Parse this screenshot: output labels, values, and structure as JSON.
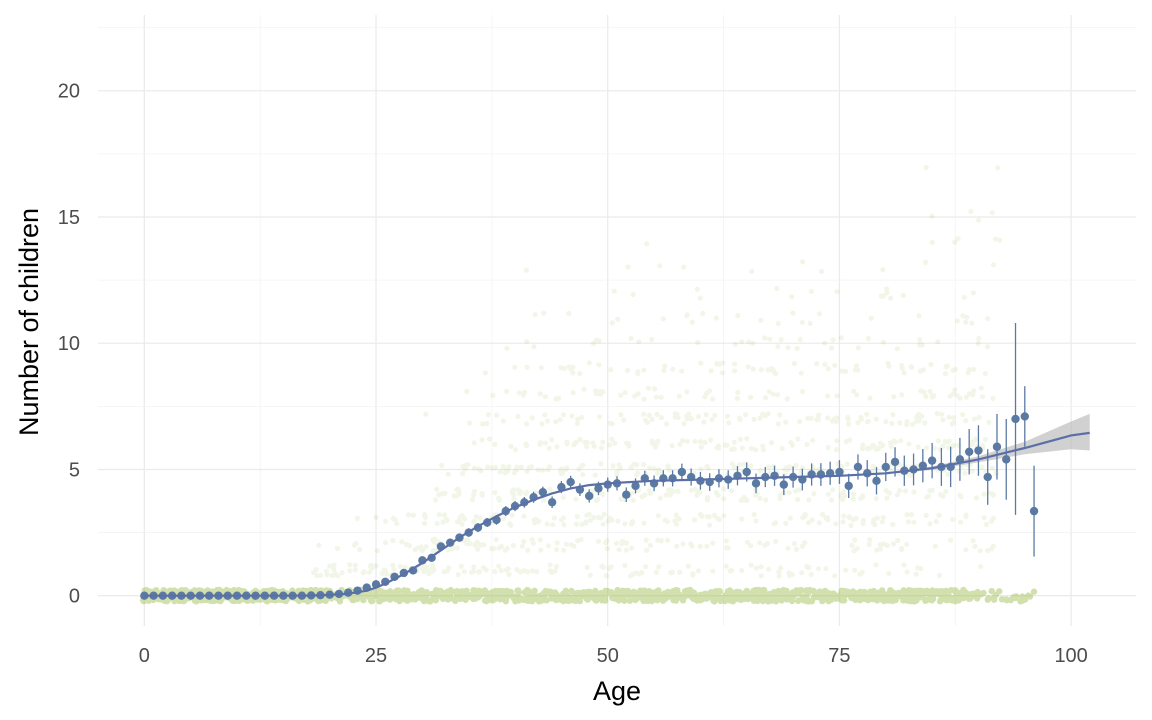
{
  "chart_data": {
    "type": "scatter",
    "title": "",
    "xlabel": "Age",
    "ylabel": "Number of children",
    "xlim": [
      -5,
      107
    ],
    "ylim": [
      -1.2,
      23
    ],
    "x_ticks": [
      0,
      25,
      50,
      75,
      100
    ],
    "y_ticks": [
      0,
      5,
      10,
      15,
      20
    ],
    "grid": true,
    "legend": "none",
    "colors": {
      "raw_points": "#9bbb4c",
      "means": "#5a7aa3",
      "smooth": "#5a6fa8",
      "ribbon": "#bdbdbd",
      "grid": "#ebebeb"
    },
    "series": [
      {
        "kind": "mean_with_error",
        "x": [
          0,
          1,
          2,
          3,
          4,
          5,
          6,
          7,
          8,
          9,
          10,
          11,
          12,
          13,
          14,
          15,
          16,
          17,
          18,
          19,
          20,
          21,
          22,
          23,
          24,
          25,
          26,
          27,
          28,
          29,
          30,
          31,
          32,
          33,
          34,
          35,
          36,
          37,
          38,
          39,
          40,
          41,
          42,
          43,
          44,
          45,
          46,
          47,
          48,
          49,
          50,
          51,
          52,
          53,
          54,
          55,
          56,
          57,
          58,
          59,
          60,
          61,
          62,
          63,
          64,
          65,
          66,
          67,
          68,
          69,
          70,
          71,
          72,
          73,
          74,
          75,
          76,
          77,
          78,
          79,
          80,
          81,
          82,
          83,
          84,
          85,
          86,
          87,
          88,
          89,
          90,
          91,
          92,
          93,
          94,
          95,
          96
        ],
        "y": [
          0,
          0,
          0,
          0,
          0,
          0,
          0,
          0,
          0,
          0,
          0,
          0,
          0,
          0,
          0,
          0,
          0,
          0,
          0.01,
          0.02,
          0.04,
          0.07,
          0.12,
          0.2,
          0.32,
          0.45,
          0.55,
          0.75,
          0.9,
          1.0,
          1.4,
          1.5,
          1.95,
          2.1,
          2.3,
          2.5,
          2.7,
          2.9,
          3.0,
          3.35,
          3.55,
          3.7,
          3.9,
          4.1,
          3.7,
          4.3,
          4.5,
          4.2,
          3.95,
          4.25,
          4.4,
          4.45,
          4.0,
          4.35,
          4.65,
          4.45,
          4.65,
          4.65,
          4.9,
          4.7,
          4.55,
          4.5,
          4.65,
          4.6,
          4.75,
          4.9,
          4.45,
          4.7,
          4.75,
          4.4,
          4.7,
          4.6,
          4.8,
          4.8,
          4.85,
          4.9,
          4.35,
          5.1,
          4.85,
          4.55,
          5.1,
          5.3,
          4.95,
          5.0,
          5.15,
          5.35,
          5.1,
          5.1,
          5.4,
          5.7,
          5.75,
          4.7,
          5.9,
          5.4,
          7.0,
          7.1,
          3.35
        ],
        "err": [
          0,
          0,
          0,
          0,
          0,
          0,
          0,
          0,
          0,
          0,
          0,
          0,
          0,
          0,
          0,
          0,
          0,
          0,
          0.01,
          0.01,
          0.02,
          0.03,
          0.04,
          0.05,
          0.06,
          0.08,
          0.09,
          0.1,
          0.11,
          0.12,
          0.13,
          0.14,
          0.15,
          0.15,
          0.16,
          0.17,
          0.18,
          0.18,
          0.19,
          0.2,
          0.2,
          0.21,
          0.22,
          0.22,
          0.23,
          0.24,
          0.25,
          0.25,
          0.26,
          0.27,
          0.28,
          0.28,
          0.29,
          0.3,
          0.3,
          0.31,
          0.32,
          0.32,
          0.33,
          0.34,
          0.35,
          0.35,
          0.36,
          0.37,
          0.38,
          0.38,
          0.39,
          0.4,
          0.4,
          0.41,
          0.42,
          0.43,
          0.44,
          0.45,
          0.46,
          0.47,
          0.48,
          0.5,
          0.52,
          0.54,
          0.56,
          0.58,
          0.6,
          0.63,
          0.66,
          0.7,
          0.75,
          0.8,
          0.85,
          0.9,
          1.0,
          1.1,
          1.3,
          1.6,
          3.8,
          1.2,
          1.8
        ]
      },
      {
        "kind": "smooth",
        "x": [
          0,
          5,
          10,
          15,
          18,
          20,
          22,
          24,
          25,
          26,
          28,
          30,
          32,
          34,
          36,
          38,
          40,
          42,
          44,
          46,
          48,
          50,
          55,
          60,
          65,
          70,
          75,
          80,
          85,
          90,
          95,
          100,
          102
        ],
        "y": [
          0,
          0,
          0,
          0,
          0.01,
          0.03,
          0.08,
          0.2,
          0.32,
          0.48,
          0.85,
          1.3,
          1.8,
          2.3,
          2.75,
          3.15,
          3.5,
          3.8,
          4.05,
          4.25,
          4.38,
          4.45,
          4.55,
          4.6,
          4.65,
          4.7,
          4.75,
          4.85,
          5.05,
          5.4,
          5.85,
          6.35,
          6.45
        ],
        "lower": [
          0,
          0,
          0,
          0,
          0.01,
          0.03,
          0.08,
          0.2,
          0.32,
          0.48,
          0.85,
          1.3,
          1.8,
          2.3,
          2.75,
          3.15,
          3.5,
          3.8,
          4.05,
          4.25,
          4.38,
          4.45,
          4.55,
          4.6,
          4.65,
          4.7,
          4.75,
          4.82,
          4.98,
          5.28,
          5.6,
          5.8,
          5.75
        ],
        "upper": [
          0,
          0,
          0,
          0,
          0.01,
          0.03,
          0.08,
          0.2,
          0.32,
          0.48,
          0.85,
          1.3,
          1.8,
          2.3,
          2.75,
          3.15,
          3.5,
          3.8,
          4.05,
          4.25,
          4.38,
          4.45,
          4.55,
          4.6,
          4.65,
          4.7,
          4.75,
          4.88,
          5.12,
          5.52,
          6.1,
          6.9,
          7.2
        ]
      }
    ]
  }
}
